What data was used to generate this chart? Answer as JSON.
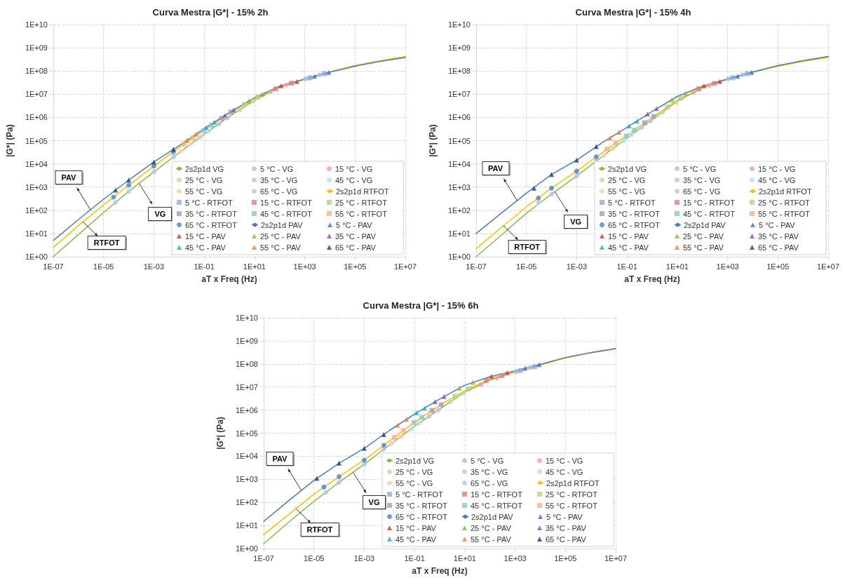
{
  "chart_data": [
    {
      "type": "scatter",
      "title": "Curva Mestra |G*| - 15% 2h",
      "xlabel": "aT x Freq (Hz)",
      "ylabel": "|G*| (Pa)",
      "log": "xy",
      "grid": true,
      "legend": "bottom right",
      "xlim": [
        1e-07,
        10000000.0
      ],
      "ylim": [
        1,
        10000000000.0
      ],
      "xticks": [
        {
          "value": 1e-07,
          "label": "1E-07"
        },
        {
          "value": 1e-05,
          "label": "1E-05"
        },
        {
          "value": 0.001,
          "label": "1E-03"
        },
        {
          "value": 0.1,
          "label": "1E-01"
        },
        {
          "value": 10.0,
          "label": "1E+01"
        },
        {
          "value": 1000.0,
          "label": "1E+03"
        },
        {
          "value": 100000.0,
          "label": "1E+05"
        },
        {
          "value": 10000000.0,
          "label": "1E+07"
        }
      ],
      "yticks": [
        {
          "value": 1,
          "label": "1E+00"
        },
        {
          "value": 10.0,
          "label": "1E+01"
        },
        {
          "value": 100.0,
          "label": "1E+02"
        },
        {
          "value": 1000.0,
          "label": "1E+03"
        },
        {
          "value": 10000.0,
          "label": "1E+04"
        },
        {
          "value": 100000.0,
          "label": "1E+05"
        },
        {
          "value": 1000000.0,
          "label": "1E+06"
        },
        {
          "value": 10000000.0,
          "label": "1E+07"
        },
        {
          "value": 100000000.0,
          "label": "1E+08"
        },
        {
          "value": 1000000000.0,
          "label": "1E+09"
        },
        {
          "value": 10000000000.0,
          "label": "1E+10"
        }
      ],
      "annotations": [
        {
          "text": "PAV",
          "x": 3e-06,
          "y": 105
        },
        {
          "text": "VG",
          "x": 0.00026,
          "y": 1400
        },
        {
          "text": "RTFOT",
          "x": 1.5e-06,
          "y": 32
        }
      ],
      "series": [
        {
          "name": "2s2p1d VG",
          "type": "line",
          "marker": "none",
          "color": "#8db84a",
          "x": [
            1e-07,
            1e-06,
            1e-05,
            0.0001,
            0.001,
            0.01,
            0.1,
            1,
            10,
            100,
            1000.0,
            10000.0,
            100000.0,
            1000000.0,
            10000000.0
          ],
          "values": [
            1,
            9,
            80,
            650,
            4500,
            30000.0,
            190000.0,
            1100000.0,
            5500000.0,
            20000000.0,
            45000000.0,
            90000000.0,
            170000000.0,
            270000000.0,
            400000000.0
          ]
        },
        {
          "name": "5 °C - VG",
          "marker": "circle",
          "color": "#a9c1e6",
          "x": [
            1070,
            3900
          ],
          "values": [
            46000000.0,
            68000000.0
          ]
        },
        {
          "name": "15 °C - VG",
          "marker": "circle",
          "color": "#eba3a3",
          "x": [
            44,
            186
          ],
          "values": [
            13000000.0,
            25000000.0
          ]
        },
        {
          "name": "25 °C - VG",
          "marker": "circle",
          "color": "#c2d99c",
          "x": [
            2.6,
            9.1
          ],
          "values": [
            2100000.0,
            5100000.0
          ]
        },
        {
          "name": "35 °C - VG",
          "marker": "circle",
          "color": "#c9bedd",
          "x": [
            0.38,
            0.87
          ],
          "values": [
            520000.0,
            980000.0
          ]
        },
        {
          "name": "45 °C - VG",
          "marker": "circle",
          "color": "#b9dcea",
          "x": [
            0.074,
            0.15
          ],
          "values": [
            150000.0,
            260000.0
          ]
        },
        {
          "name": "55 °C - VG",
          "marker": "circle",
          "color": "#f5cfb5",
          "x": [
            0.012,
            0.028
          ],
          "values": [
            35000.0,
            68000.0
          ]
        },
        {
          "name": "65 °C - VG",
          "marker": "circle",
          "color": "#b0c8ec",
          "x": [
            3e-05,
            0.0001,
            0.001,
            0.006
          ],
          "values": [
            220,
            650,
            4500,
            20000.0
          ]
        },
        {
          "name": "2s2p1d RTFOT",
          "type": "line",
          "marker": "none",
          "color": "#ffc000",
          "x": [
            1e-07,
            1e-06,
            1e-05,
            0.0001,
            0.001,
            0.01,
            0.1,
            1,
            10,
            100,
            1000.0,
            10000.0,
            100000.0,
            1000000.0,
            10000000.0
          ],
          "values": [
            2.5,
            22,
            170,
            1200,
            8000,
            50000.0,
            280000.0,
            1500000.0,
            6500000.0,
            21000000.0,
            45000000.0,
            90000000.0,
            170000000.0,
            280000000.0,
            420000000.0
          ]
        },
        {
          "name": "5 °C - RTFOT",
          "marker": "square",
          "color": "#8eaadb",
          "x": [
            1620,
            6000
          ],
          "values": [
            51000000.0,
            76000000.0
          ]
        },
        {
          "name": "15 °C - RTFOT",
          "marker": "square",
          "color": "#d98080",
          "x": [
            71,
            300
          ],
          "values": [
            17000000.0,
            30000000.0
          ]
        },
        {
          "name": "25 °C - RTFOT",
          "marker": "square",
          "color": "#b5d08a",
          "x": [
            4,
            13.8
          ],
          "values": [
            3600000.0,
            7600000.0
          ]
        },
        {
          "name": "35 °C - RTFOT",
          "marker": "square",
          "color": "#a996c8",
          "x": [
            0.5,
            1.15
          ],
          "values": [
            910000.0,
            1700000.0
          ]
        },
        {
          "name": "45 °C - RTFOT",
          "marker": "square",
          "color": "#86c5da",
          "x": [
            0.094,
            0.195
          ],
          "values": [
            270000.0,
            460000.0
          ]
        },
        {
          "name": "55 °C - RTFOT",
          "marker": "square",
          "color": "#f4b183",
          "x": [
            0.016,
            0.036
          ],
          "values": [
            71000.0,
            130000.0
          ]
        },
        {
          "name": "65 °C - RTFOT",
          "marker": "circle",
          "color": "#4a7fd6",
          "x": [
            2.5e-05,
            0.0001,
            0.001,
            0.006
          ],
          "values": [
            370,
            1200,
            8000,
            33000.0
          ]
        },
        {
          "name": "2s2p1d PAV",
          "type": "line",
          "marker": "none",
          "color": "#4a7ebb",
          "x": [
            1e-07,
            1e-06,
            1e-05,
            0.0001,
            0.001,
            0.01,
            0.1,
            1,
            10,
            100,
            1000.0,
            10000.0,
            100000.0,
            1000000.0,
            10000000.0
          ],
          "values": [
            5,
            40,
            300,
            2000,
            12000.0,
            60000.0,
            330000.0,
            1600000.0,
            7000000.0,
            22000000.0,
            45000000.0,
            90000000.0,
            160000000.0,
            260000000.0,
            380000000.0
          ]
        },
        {
          "name": "5 °C - PAV",
          "marker": "triangle",
          "color": "#4472c4",
          "x": [
            2500,
            9100
          ],
          "values": [
            59000000.0,
            87000000.0
          ]
        },
        {
          "name": "15 °C - PAV",
          "marker": "triangle",
          "color": "#c43e3e",
          "x": [
            115,
            490
          ],
          "values": [
            23000000.0,
            35000000.0
          ]
        },
        {
          "name": "25 °C - PAV",
          "marker": "triangle",
          "color": "#8db23a",
          "x": [
            6,
            21
          ],
          "values": [
            5100000.0,
            10000000.0
          ]
        },
        {
          "name": "35 °C - PAV",
          "marker": "triangle",
          "color": "#7e57a8",
          "x": [
            0.66,
            1.5
          ],
          "values": [
            1200000.0,
            2100000.0
          ]
        },
        {
          "name": "45 °C - PAV",
          "marker": "triangle",
          "color": "#1fa8c9",
          "x": [
            0.12,
            0.25
          ],
          "values": [
            370000.0,
            620000.0
          ]
        },
        {
          "name": "55 °C - PAV",
          "marker": "triangle",
          "color": "#ed7d31",
          "x": [
            0.021,
            0.048
          ],
          "values": [
            105000.0,
            190000.0
          ]
        },
        {
          "name": "65 °C - PAV",
          "marker": "triangle",
          "color": "#1f3c70",
          "x": [
            3e-05,
            0.0001,
            0.001,
            0.006
          ],
          "values": [
            740,
            2000,
            12000.0,
            43000.0
          ]
        }
      ]
    },
    {
      "type": "scatter",
      "title": "Curva Mestra |G*| - 15% 4h",
      "xlabel": "aT x Freq (Hz)",
      "ylabel": "|G*| (Pa)",
      "log": "xy",
      "grid": true,
      "legend": "bottom right",
      "xlim": [
        1e-07,
        10000000.0
      ],
      "ylim": [
        1,
        10000000000.0
      ],
      "xticks": [
        {
          "value": 1e-07,
          "label": "1E-07"
        },
        {
          "value": 1e-05,
          "label": "1E-05"
        },
        {
          "value": 0.001,
          "label": "1E-03"
        },
        {
          "value": 0.1,
          "label": "1E-01"
        },
        {
          "value": 10.0,
          "label": "1E+01"
        },
        {
          "value": 1000.0,
          "label": "1E+03"
        },
        {
          "value": 100000.0,
          "label": "1E+05"
        },
        {
          "value": 10000000.0,
          "label": "1E+07"
        }
      ],
      "yticks": [
        {
          "value": 1,
          "label": "1E+00"
        },
        {
          "value": 10.0,
          "label": "1E+01"
        },
        {
          "value": 100.0,
          "label": "1E+02"
        },
        {
          "value": 1000.0,
          "label": "1E+03"
        },
        {
          "value": 10000.0,
          "label": "1E+04"
        },
        {
          "value": 100000.0,
          "label": "1E+05"
        },
        {
          "value": 1000000.0,
          "label": "1E+06"
        },
        {
          "value": 10000000.0,
          "label": "1E+07"
        },
        {
          "value": 100000000.0,
          "label": "1E+08"
        },
        {
          "value": 1000000000.0,
          "label": "1E+09"
        },
        {
          "value": 10000000000.0,
          "label": "1E+10"
        }
      ],
      "annotations": [
        {
          "text": "PAV",
          "x": 4.3e-06,
          "y": 260
        },
        {
          "text": "VG",
          "x": 0.000135,
          "y": 630
        },
        {
          "text": "RTFOT",
          "x": 1.2e-06,
          "y": 22
        }
      ],
      "series": [
        {
          "name": "2s2p1d VG",
          "type": "line",
          "marker": "none",
          "color": "#8db84a",
          "x": [
            1e-07,
            1e-06,
            1e-05,
            0.0001,
            0.001,
            0.01,
            0.1,
            1,
            10,
            100,
            1000.0,
            10000.0,
            100000.0,
            1000000.0,
            10000000.0
          ],
          "values": [
            1,
            8.5,
            75,
            500,
            3000,
            20000.0,
            130000.0,
            800000.0,
            5000000.0,
            19000000.0,
            45000000.0,
            90000000.0,
            165000000.0,
            270000000.0,
            400000000.0
          ]
        },
        {
          "name": "5 °C - VG",
          "marker": "circle",
          "color": "#a9c1e6",
          "x": [
            1070,
            3900
          ],
          "values": [
            46000000.0,
            68000000.0
          ]
        },
        {
          "name": "15 °C - VG",
          "marker": "circle",
          "color": "#eba3a3",
          "x": [
            44,
            186
          ],
          "values": [
            12000000.0,
            24000000.0
          ]
        },
        {
          "name": "25 °C - VG",
          "marker": "circle",
          "color": "#c2d99c",
          "x": [
            2.6,
            9.1
          ],
          "values": [
            1700000.0,
            4700000.0
          ]
        },
        {
          "name": "35 °C - VG",
          "marker": "circle",
          "color": "#c9bedd",
          "x": [
            0.38,
            0.87
          ],
          "values": [
            370000.0,
            710000.0
          ]
        },
        {
          "name": "45 °C - VG",
          "marker": "circle",
          "color": "#b9dcea",
          "x": [
            0.074,
            0.15
          ],
          "values": [
            100000.0,
            180000.0
          ]
        },
        {
          "name": "55 °C - VG",
          "marker": "circle",
          "color": "#f5cfb5",
          "x": [
            0.012,
            0.028
          ],
          "values": [
            23000.0,
            46000.0
          ]
        },
        {
          "name": "65 °C - VG",
          "marker": "circle",
          "color": "#b0c8ec",
          "x": [
            3e-05,
            0.0001,
            0.001,
            0.006
          ],
          "values": [
            220,
            500,
            3000,
            13000.0
          ]
        },
        {
          "name": "2s2p1d RTFOT",
          "type": "line",
          "marker": "none",
          "color": "#ffc000",
          "x": [
            1e-07,
            1e-06,
            1e-05,
            0.0001,
            0.001,
            0.01,
            0.1,
            1,
            10,
            100,
            1000.0,
            10000.0,
            100000.0,
            1000000.0,
            10000000.0
          ],
          "values": [
            2.2,
            18,
            140,
            900,
            4800,
            30000.0,
            170000.0,
            1000000.0,
            5500000.0,
            20000000.0,
            45000000.0,
            90000000.0,
            160000000.0,
            260000000.0,
            390000000.0
          ]
        },
        {
          "name": "5 °C - RTFOT",
          "marker": "square",
          "color": "#8eaadb",
          "x": [
            1620,
            6000
          ],
          "values": [
            51000000.0,
            76000000.0
          ]
        },
        {
          "name": "15 °C - RTFOT",
          "marker": "square",
          "color": "#d98080",
          "x": [
            71,
            300
          ],
          "values": [
            17000000.0,
            29000000.0
          ]
        },
        {
          "name": "25 °C - RTFOT",
          "marker": "square",
          "color": "#b5d08a",
          "x": [
            4,
            13.8
          ],
          "values": [
            2800000.0,
            6600000.0
          ]
        },
        {
          "name": "35 °C - RTFOT",
          "marker": "square",
          "color": "#a996c8",
          "x": [
            0.5,
            1.15
          ],
          "values": [
            590000.0,
            1100000.0
          ]
        },
        {
          "name": "45 °C - RTFOT",
          "marker": "square",
          "color": "#86c5da",
          "x": [
            0.094,
            0.195
          ],
          "values": [
            160000.0,
            280000.0
          ]
        },
        {
          "name": "55 °C - RTFOT",
          "marker": "square",
          "color": "#f4b183",
          "x": [
            0.016,
            0.036
          ],
          "values": [
            43000.0,
            80000.0
          ]
        },
        {
          "name": "65 °C - RTFOT",
          "marker": "circle",
          "color": "#4a7fd6",
          "x": [
            3e-05,
            0.0001,
            0.001,
            0.006
          ],
          "values": [
            340,
            900,
            4800,
            20000.0
          ]
        },
        {
          "name": "2s2p1d PAV",
          "type": "line",
          "marker": "none",
          "color": "#4a7ebb",
          "x": [
            1e-07,
            1e-06,
            1e-05,
            0.0001,
            0.001,
            0.01,
            0.1,
            1,
            10,
            100,
            1000.0,
            10000.0,
            100000.0,
            1000000.0,
            10000000.0
          ],
          "values": [
            10,
            75,
            550,
            3500,
            14500.0,
            80000.0,
            370000.0,
            1800000.0,
            8000000.0,
            22000000.0,
            45000000.0,
            90000000.0,
            170000000.0,
            280000000.0,
            420000000.0
          ]
        },
        {
          "name": "5 °C - PAV",
          "marker": "triangle",
          "color": "#4472c4",
          "x": [
            2500,
            9100
          ],
          "values": [
            59000000.0,
            87000000.0
          ]
        },
        {
          "name": "15 °C - PAV",
          "marker": "triangle",
          "color": "#c43e3e",
          "x": [
            115,
            490
          ],
          "values": [
            23000000.0,
            35000000.0
          ]
        },
        {
          "name": "25 °C - PAV",
          "marker": "triangle",
          "color": "#8db23a",
          "x": [
            6,
            21
          ],
          "values": [
            5800000.0,
            11000000.0
          ]
        },
        {
          "name": "35 °C - PAV",
          "marker": "triangle",
          "color": "#7e57a8",
          "x": [
            0.66,
            1.5
          ],
          "values": [
            1400000.0,
            2400000.0
          ]
        },
        {
          "name": "45 °C - PAV",
          "marker": "triangle",
          "color": "#1fa8c9",
          "x": [
            0.12,
            0.25
          ],
          "values": [
            430000.0,
            690000.0
          ]
        },
        {
          "name": "55 °C - PAV",
          "marker": "triangle",
          "color": "#ed7d31",
          "x": [
            0.021,
            0.048
          ],
          "values": [
            130000.0,
            230000.0
          ]
        },
        {
          "name": "65 °C - PAV",
          "marker": "triangle",
          "color": "#1f3c70",
          "x": [
            2e-05,
            0.0001,
            0.001,
            0.006
          ],
          "values": [
            900,
            3500,
            14500.0,
            55000.0
          ]
        }
      ]
    },
    {
      "type": "scatter",
      "title": "Curva Mestra |G*| - 15% 6h",
      "xlabel": "aT x Freq (Hz)",
      "ylabel": "|G*| (Pa)",
      "log": "xy",
      "grid": true,
      "legend": "bottom right",
      "xlim": [
        1e-07,
        10000000.0
      ],
      "ylim": [
        1,
        10000000000.0
      ],
      "xticks": [
        {
          "value": 1e-07,
          "label": "1E-07"
        },
        {
          "value": 1e-05,
          "label": "1E-05"
        },
        {
          "value": 0.001,
          "label": "1E-03"
        },
        {
          "value": 0.1,
          "label": "1E-01"
        },
        {
          "value": 10.0,
          "label": "1E+01"
        },
        {
          "value": 1000.0,
          "label": "1E+03"
        },
        {
          "value": 100000.0,
          "label": "1E+05"
        },
        {
          "value": 10000000.0,
          "label": "1E+07"
        }
      ],
      "yticks": [
        {
          "value": 1,
          "label": "1E+00"
        },
        {
          "value": 10.0,
          "label": "1E+01"
        },
        {
          "value": 100.0,
          "label": "1E+02"
        },
        {
          "value": 1000.0,
          "label": "1E+03"
        },
        {
          "value": 10000.0,
          "label": "1E+04"
        },
        {
          "value": 100000.0,
          "label": "1E+05"
        },
        {
          "value": 1000000.0,
          "label": "1E+06"
        },
        {
          "value": 10000000.0,
          "label": "1E+07"
        },
        {
          "value": 100000000.0,
          "label": "1E+08"
        },
        {
          "value": 1000000000.0,
          "label": "1E+09"
        },
        {
          "value": 10000000000.0,
          "label": "1E+10"
        }
      ],
      "annotations": [
        {
          "text": "PAV",
          "x": 3.2e-06,
          "y": 320
        },
        {
          "text": "VG",
          "x": 0.00036,
          "y": 2000
        },
        {
          "text": "RTFOT",
          "x": 1.9e-06,
          "y": 54
        }
      ],
      "series": [
        {
          "name": "2s2p1d VG",
          "type": "line",
          "marker": "none",
          "color": "#8db84a",
          "x": [
            1e-07,
            1e-06,
            1e-05,
            0.0001,
            0.001,
            0.01,
            0.1,
            1,
            10,
            100,
            1000.0,
            10000.0,
            100000.0,
            1000000.0,
            10000000.0
          ],
          "values": [
            1.6,
            14,
            110,
            750,
            4500,
            30000.0,
            200000.0,
            1100000.0,
            6000000.0,
            20000000.0,
            45000000.0,
            90000000.0,
            180000000.0,
            300000000.0,
            460000000.0
          ]
        },
        {
          "name": "5 °C - VG",
          "marker": "circle",
          "color": "#a9c1e6",
          "x": [
            1070,
            3900
          ],
          "values": [
            46000000.0,
            68000000.0
          ]
        },
        {
          "name": "15 °C - VG",
          "marker": "circle",
          "color": "#eba3a3",
          "x": [
            44,
            186
          ],
          "values": [
            13000000.0,
            25000000.0
          ]
        },
        {
          "name": "25 °C - VG",
          "marker": "circle",
          "color": "#c2d99c",
          "x": [
            2.6,
            9.1
          ],
          "values": [
            2200000.0,
            5600000.0
          ]
        },
        {
          "name": "35 °C - VG",
          "marker": "circle",
          "color": "#c9bedd",
          "x": [
            0.38,
            0.87
          ],
          "values": [
            540000.0,
            1000000.0
          ]
        },
        {
          "name": "45 °C - VG",
          "marker": "circle",
          "color": "#b9dcea",
          "x": [
            0.074,
            0.15
          ],
          "values": [
            150000.0,
            270000.0
          ]
        },
        {
          "name": "55 °C - VG",
          "marker": "circle",
          "color": "#f5cfb5",
          "x": [
            0.012,
            0.028
          ],
          "values": [
            35000.0,
            69000.0
          ]
        },
        {
          "name": "65 °C - VG",
          "marker": "circle",
          "color": "#b0c8ec",
          "x": [
            3e-05,
            0.0001,
            0.001,
            0.006
          ],
          "values": [
            270,
            750,
            4500,
            20000.0
          ]
        },
        {
          "name": "2s2p1d RTFOT",
          "type": "line",
          "marker": "none",
          "color": "#ffc000",
          "x": [
            1e-07,
            1e-06,
            1e-05,
            0.0001,
            0.001,
            0.01,
            0.1,
            1,
            10,
            100,
            1000.0,
            10000.0,
            100000.0,
            1000000.0,
            10000000.0
          ],
          "values": [
            4,
            30,
            230,
            1300,
            6800,
            45000.0,
            300000.0,
            1600000.0,
            7000000.0,
            22000000.0,
            45000000.0,
            90000000.0,
            180000000.0,
            300000000.0,
            460000000.0
          ]
        },
        {
          "name": "5 °C - RTFOT",
          "marker": "square",
          "color": "#8eaadb",
          "x": [
            1620,
            6000
          ],
          "values": [
            51000000.0,
            76000000.0
          ]
        },
        {
          "name": "15 °C - RTFOT",
          "marker": "square",
          "color": "#d98080",
          "x": [
            71,
            300
          ],
          "values": [
            19000000.0,
            31000000.0
          ]
        },
        {
          "name": "25 °C - RTFOT",
          "marker": "square",
          "color": "#b5d08a",
          "x": [
            4,
            13.8
          ],
          "values": [
            3900000.0,
            8300000.0
          ]
        },
        {
          "name": "35 °C - RTFOT",
          "marker": "square",
          "color": "#a996c8",
          "x": [
            0.5,
            1.15
          ],
          "values": [
            960000.0,
            1700000.0
          ]
        },
        {
          "name": "45 °C - RTFOT",
          "marker": "square",
          "color": "#86c5da",
          "x": [
            0.094,
            0.195
          ],
          "values": [
            290000.0,
            490000.0
          ]
        },
        {
          "name": "55 °C - RTFOT",
          "marker": "square",
          "color": "#f4b183",
          "x": [
            0.016,
            0.036
          ],
          "values": [
            66000.0,
            130000.0
          ]
        },
        {
          "name": "65 °C - RTFOT",
          "marker": "circle",
          "color": "#4a7fd6",
          "x": [
            2.5e-05,
            0.0001,
            0.001,
            0.006
          ],
          "values": [
            460,
            1300,
            6800,
            30000.0
          ]
        },
        {
          "name": "2s2p1d PAV",
          "type": "line",
          "marker": "none",
          "color": "#4a7ebb",
          "x": [
            1e-07,
            1e-06,
            1e-05,
            0.0001,
            0.001,
            0.01,
            0.1,
            1,
            10,
            100,
            1000.0,
            10000.0,
            100000.0,
            1000000.0,
            10000000.0
          ],
          "values": [
            15,
            120,
            900,
            5000,
            22000.0,
            130000.0,
            670000.0,
            3000000.0,
            12000000.0,
            28000000.0,
            50000000.0,
            95000000.0,
            190000000.0,
            310000000.0,
            460000000.0
          ]
        },
        {
          "name": "5 °C - PAV",
          "marker": "triangle",
          "color": "#4472c4",
          "x": [
            2500,
            9100
          ],
          "values": [
            65000000.0,
            93000000.0
          ]
        },
        {
          "name": "15 °C - PAV",
          "marker": "triangle",
          "color": "#c43e3e",
          "x": [
            115,
            490
          ],
          "values": [
            29000000.0,
            42000000.0
          ]
        },
        {
          "name": "25 °C - PAV",
          "marker": "triangle",
          "color": "#8db23a",
          "x": [
            6,
            21
          ],
          "values": [
            8900000.0,
            16000000.0
          ]
        },
        {
          "name": "35 °C - PAV",
          "marker": "triangle",
          "color": "#7e57a8",
          "x": [
            0.66,
            1.5
          ],
          "values": [
            2300000.0,
            3900000.0
          ]
        },
        {
          "name": "45 °C - PAV",
          "marker": "triangle",
          "color": "#1fa8c9",
          "x": [
            0.12,
            0.25
          ],
          "values": [
            760000.0,
            1200000.0
          ]
        },
        {
          "name": "55 °C - PAV",
          "marker": "triangle",
          "color": "#ed7d31",
          "x": [
            0.021,
            0.048
          ],
          "values": [
            220000.0,
            400000.0
          ]
        },
        {
          "name": "65 °C - PAV",
          "marker": "triangle",
          "color": "#1f3c70",
          "x": [
            1.3e-05,
            0.0001,
            0.001,
            0.006
          ],
          "values": [
            1100,
            5000,
            22000.0,
            87000.0
          ]
        }
      ]
    }
  ]
}
